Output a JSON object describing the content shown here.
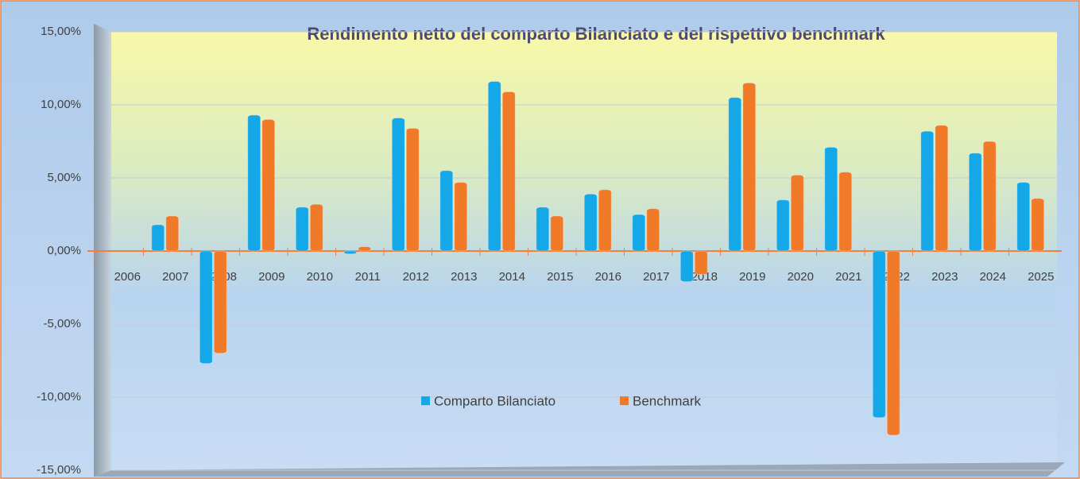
{
  "chart_data": {
    "type": "bar",
    "title": "Rendimento netto del comparto Bilanciato e del rispettivo benchmark",
    "categories": [
      "2006",
      "2007",
      "2008",
      "2009",
      "2010",
      "2011",
      "2012",
      "2013",
      "2014",
      "2015",
      "2016",
      "2017",
      "2018",
      "2019",
      "2020",
      "2021",
      "2022",
      "2023",
      "2024",
      "2025"
    ],
    "series": [
      {
        "name": "Comparto Bilanciato",
        "color": "#14a8e8",
        "values": [
          null,
          1.8,
          -7.7,
          9.3,
          3.0,
          -0.2,
          9.1,
          5.5,
          11.6,
          3.0,
          3.9,
          2.5,
          -2.1,
          10.5,
          3.5,
          7.1,
          -11.4,
          8.2,
          6.7,
          4.7
        ]
      },
      {
        "name": "Benchmark",
        "color": "#f07a28",
        "values": [
          null,
          2.4,
          -7.0,
          9.0,
          3.2,
          0.3,
          8.4,
          4.7,
          10.9,
          2.4,
          4.2,
          2.9,
          -1.6,
          11.5,
          5.2,
          5.4,
          -12.6,
          8.6,
          7.5,
          3.6
        ]
      }
    ],
    "ylim": [
      -15,
      15
    ],
    "yticks": [
      {
        "value": -15,
        "label": "-15,00%"
      },
      {
        "value": -10,
        "label": "-10,00%"
      },
      {
        "value": -5,
        "label": "-5,00%"
      },
      {
        "value": 0,
        "label": "0,00%"
      },
      {
        "value": 5,
        "label": "5,00%"
      },
      {
        "value": 10,
        "label": "10,00%"
      },
      {
        "value": 15,
        "label": "15,00%"
      }
    ],
    "grid": true
  }
}
